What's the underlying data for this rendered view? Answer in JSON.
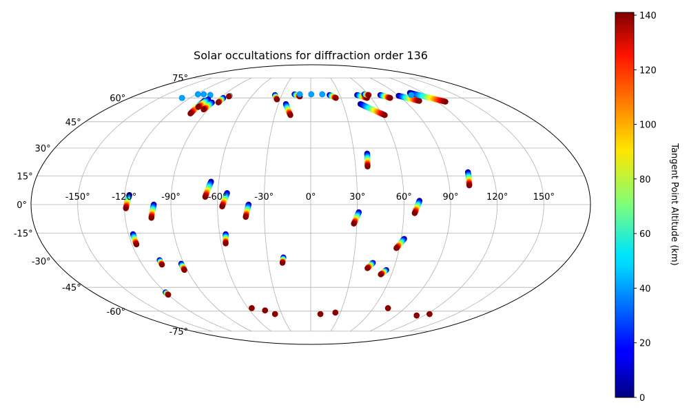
{
  "chart_data": {
    "type": "scatter",
    "projection": "mollweide",
    "title": "Solar occultations for diffraction order 136",
    "lon_tick_labels": [
      {
        "value": -150,
        "label": "-150°"
      },
      {
        "value": -120,
        "label": "-120°"
      },
      {
        "value": -90,
        "label": "-90°"
      },
      {
        "value": -60,
        "label": "-60°"
      },
      {
        "value": -30,
        "label": "-30°"
      },
      {
        "value": 0,
        "label": "0°"
      },
      {
        "value": 30,
        "label": "30°"
      },
      {
        "value": 60,
        "label": "60°"
      },
      {
        "value": 90,
        "label": "90°"
      },
      {
        "value": 120,
        "label": "120°"
      },
      {
        "value": 150,
        "label": "150°"
      }
    ],
    "lat_tick_labels": [
      {
        "value": 75,
        "label": "75°"
      },
      {
        "value": 60,
        "label": "60°"
      },
      {
        "value": 45,
        "label": "45°"
      },
      {
        "value": 30,
        "label": "30°"
      },
      {
        "value": 15,
        "label": "15°"
      },
      {
        "value": 0,
        "label": "0°"
      },
      {
        "value": -15,
        "label": "-15°"
      },
      {
        "value": -30,
        "label": "-30°"
      },
      {
        "value": -45,
        "label": "-45°"
      },
      {
        "value": -60,
        "label": "-60°"
      },
      {
        "value": -75,
        "label": "-75°"
      }
    ],
    "grid": true,
    "colorbar": {
      "label": "Tangent Point Altitude (km)",
      "range": [
        0,
        141
      ],
      "colormap": "jet",
      "ticks": [
        {
          "value": 0,
          "label": "0"
        },
        {
          "value": 20,
          "label": "20"
        },
        {
          "value": 40,
          "label": "40"
        },
        {
          "value": 60,
          "label": "60"
        },
        {
          "value": 80,
          "label": "80"
        },
        {
          "value": 100,
          "label": "100"
        },
        {
          "value": 120,
          "label": "120"
        },
        {
          "value": 140,
          "label": "140"
        }
      ]
    },
    "altitude_range_km": [
      0,
      140
    ],
    "tracks": [
      {
        "lon0": -128.0,
        "lat0": 60.0,
        "lon1": -128.0,
        "lat1": 60.0,
        "reverse": false,
        "full": false
      },
      {
        "lon0": -118.0,
        "lat0": 62.5,
        "lon1": -118.0,
        "lat1": 62.5,
        "reverse": false,
        "full": false
      },
      {
        "lon0": -112.0,
        "lat0": 62.5,
        "lon1": -112.0,
        "lat1": 62.5,
        "reverse": false,
        "full": false
      },
      {
        "lon0": -104.0,
        "lat0": 62.0,
        "lon1": -104.0,
        "lat1": 62.0,
        "reverse": false,
        "full": false
      },
      {
        "lon0": -102.0,
        "lat0": 58.0,
        "lon1": -102.0,
        "lat1": 50.0,
        "reverse": false,
        "full": true
      },
      {
        "lon0": -100.0,
        "lat0": 59.0,
        "lon1": -101.0,
        "lat1": 54.0,
        "reverse": false,
        "full": true
      },
      {
        "lon0": -93.0,
        "lat0": 57.0,
        "lon1": -94.0,
        "lat1": 52.5,
        "reverse": false,
        "full": true
      },
      {
        "lon0": -87.0,
        "lat0": 60.0,
        "lon1": -87.0,
        "lat1": 57.0,
        "reverse": false,
        "full": true
      },
      {
        "lon0": -83.0,
        "lat0": 61.5,
        "lon1": -83.0,
        "lat1": 61.0,
        "reverse": false,
        "full": true
      },
      {
        "lon0": -37.0,
        "lat0": 62.0,
        "lon1": -33.0,
        "lat1": 59.0,
        "reverse": false,
        "full": true
      },
      {
        "lon0": -23.0,
        "lat0": 56.0,
        "lon1": -17.0,
        "lat1": 49.0,
        "reverse": false,
        "full": true
      },
      {
        "lon0": -17.0,
        "lat0": 62.5,
        "lon1": -11.0,
        "lat1": 61.0,
        "reverse": false,
        "full": true
      },
      {
        "lon0": -11.5,
        "lat0": 62.5,
        "lon1": -11.5,
        "lat1": 62.5,
        "reverse": false,
        "full": false
      },
      {
        "lon0": 0.5,
        "lat0": 62.5,
        "lon1": 0.5,
        "lat1": 62.5,
        "reverse": false,
        "full": false
      },
      {
        "lon0": 12.0,
        "lat0": 62.5,
        "lon1": 12.0,
        "lat1": 62.5,
        "reverse": false,
        "full": false
      },
      {
        "lon0": 19.5,
        "lat0": 62.0,
        "lon1": 25.0,
        "lat1": 60.0,
        "reverse": false,
        "full": true
      },
      {
        "lon0": 48.0,
        "lat0": 62.0,
        "lon1": 56.0,
        "lat1": 60.0,
        "reverse": false,
        "full": true
      },
      {
        "lon0": 46.0,
        "lat0": 56.0,
        "lon1": 62.0,
        "lat1": 49.0,
        "reverse": false,
        "full": true
      },
      {
        "lon0": 56.0,
        "lat0": 62.5,
        "lon1": 60.0,
        "lat1": 62.0,
        "reverse": false,
        "full": true
      },
      {
        "lon0": 72.0,
        "lat0": 62.0,
        "lon1": 79.0,
        "lat1": 60.0,
        "reverse": false,
        "full": true
      },
      {
        "lon0": 90.0,
        "lat0": 61.5,
        "lon1": 104.0,
        "lat1": 58.0,
        "reverse": false,
        "full": true
      },
      {
        "lon0": 106.0,
        "lat0": 63.5,
        "lon1": 128.0,
        "lat1": 57.5,
        "reverse": false,
        "full": true
      },
      {
        "lon0": 104.0,
        "lat0": 62.0,
        "lon1": 104.0,
        "lat1": 62.0,
        "reverse": false,
        "full": false
      },
      {
        "lon0": 39.0,
        "lat0": 27.0,
        "lon1": 38.0,
        "lat1": 20.0,
        "reverse": false,
        "full": true
      },
      {
        "lon0": 104.0,
        "lat0": 17.0,
        "lon1": 103.0,
        "lat1": 10.0,
        "reverse": false,
        "full": true
      },
      {
        "lon0": -117.0,
        "lat0": 5.0,
        "lon1": -119.0,
        "lat1": -2.0,
        "reverse": false,
        "full": true
      },
      {
        "lon0": -65.0,
        "lat0": 12.0,
        "lon1": -68.0,
        "lat1": 4.0,
        "reverse": false,
        "full": true
      },
      {
        "lon0": -54.0,
        "lat0": 6.0,
        "lon1": -57.0,
        "lat1": -1.0,
        "reverse": false,
        "full": true
      },
      {
        "lon0": -40.0,
        "lat0": 0.0,
        "lon1": -42.0,
        "lat1": -6.5,
        "reverse": false,
        "full": true
      },
      {
        "lon0": -101.0,
        "lat0": 0.0,
        "lon1": -103.0,
        "lat1": -7.0,
        "reverse": false,
        "full": true
      },
      {
        "lon0": 31.0,
        "lat0": -4.0,
        "lon1": 28.0,
        "lat1": -10.0,
        "reverse": false,
        "full": true
      },
      {
        "lon0": 70.0,
        "lat0": 2.0,
        "lon1": 67.0,
        "lat1": -4.5,
        "reverse": false,
        "full": true
      },
      {
        "lon0": -117.0,
        "lat0": -15.5,
        "lon1": -117.0,
        "lat1": -21.0,
        "reverse": false,
        "full": true
      },
      {
        "lon0": -56.0,
        "lat0": -15.5,
        "lon1": -57.0,
        "lat1": -20.5,
        "reverse": false,
        "full": true
      },
      {
        "lon0": 62.0,
        "lat0": -18.0,
        "lon1": 58.0,
        "lat1": -23.0,
        "reverse": false,
        "full": true
      },
      {
        "lon0": -19.0,
        "lat0": -28.0,
        "lon1": -20.0,
        "lat1": -31.0,
        "reverse": false,
        "full": true
      },
      {
        "lon0": -106.0,
        "lat0": -29.5,
        "lon1": -106.0,
        "lat1": -32.0,
        "reverse": false,
        "full": true
      },
      {
        "lon0": -92.0,
        "lat0": -31.5,
        "lon1": -92.0,
        "lat1": -35.0,
        "reverse": false,
        "full": true
      },
      {
        "lon0": 44.0,
        "lat0": -31.0,
        "lon1": 41.0,
        "lat1": -34.0,
        "reverse": false,
        "full": true
      },
      {
        "lon0": 55.0,
        "lat0": -35.0,
        "lon1": 52.0,
        "lat1": -37.5,
        "reverse": false,
        "full": true
      },
      {
        "lon0": -120.0,
        "lat0": -48.0,
        "lon1": -120.0,
        "lat1": -49.5,
        "reverse": false,
        "full": true
      },
      {
        "lon0": -56.5,
        "lat0": -58.0,
        "lon1": -56.5,
        "lat1": -58.0,
        "reverse": true,
        "full": false
      },
      {
        "lon0": -45.0,
        "lat0": -59.5,
        "lon1": -45.0,
        "lat1": -59.5,
        "reverse": true,
        "full": false
      },
      {
        "lon0": -37.0,
        "lat0": -62.0,
        "lon1": -37.0,
        "lat1": -62.0,
        "reverse": true,
        "full": false
      },
      {
        "lon0": 10.0,
        "lat0": -62.0,
        "lon1": 10.0,
        "lat1": -62.0,
        "reverse": true,
        "full": false
      },
      {
        "lon0": 25.0,
        "lat0": -61.0,
        "lon1": 25.0,
        "lat1": -61.0,
        "reverse": true,
        "full": false
      },
      {
        "lon0": 74.0,
        "lat0": -58.0,
        "lon1": 74.0,
        "lat1": -58.0,
        "reverse": true,
        "full": false
      },
      {
        "lon0": 112.0,
        "lat0": -63.0,
        "lon1": 112.0,
        "lat1": -63.0,
        "reverse": true,
        "full": false
      },
      {
        "lon0": 123.0,
        "lat0": -62.0,
        "lon1": 123.0,
        "lat1": -62.0,
        "reverse": true,
        "full": false
      }
    ]
  }
}
